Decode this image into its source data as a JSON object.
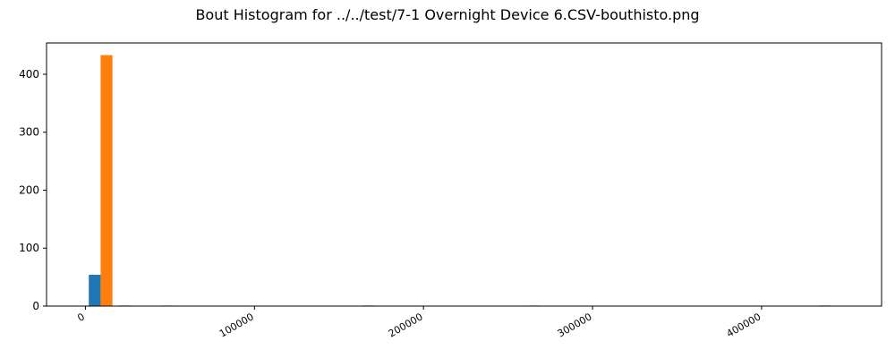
{
  "chart_data": {
    "type": "bar",
    "title": "Bout Histogram for ../../test/7-1 Overnight Device 6.CSV-bouthisto.png",
    "xlabel": "",
    "ylabel": "",
    "xlim": [
      -23000,
      471000
    ],
    "ylim": [
      0,
      454
    ],
    "xticks": [
      0,
      100000,
      200000,
      300000,
      400000
    ],
    "xtick_labels": [
      "0",
      "100000",
      "200000",
      "300000",
      "400000"
    ],
    "yticks": [
      0,
      100,
      200,
      300,
      400
    ],
    "ytick_labels": [
      "0",
      "100",
      "200",
      "300",
      "400"
    ],
    "grid": false,
    "legend": "none",
    "bin_width": 7000,
    "series": [
      {
        "color": "#1f77b4",
        "bars": [
          {
            "x": 5500,
            "value": 54
          },
          {
            "x": 23500,
            "value": 1
          },
          {
            "x": 167500,
            "value": 1
          },
          {
            "x": 437500,
            "value": 1
          }
        ]
      },
      {
        "color": "#ff7f0e",
        "bars": [
          {
            "x": 12500,
            "value": 433
          },
          {
            "x": 48500,
            "value": 1
          },
          {
            "x": 265500,
            "value": 1
          }
        ]
      }
    ]
  }
}
